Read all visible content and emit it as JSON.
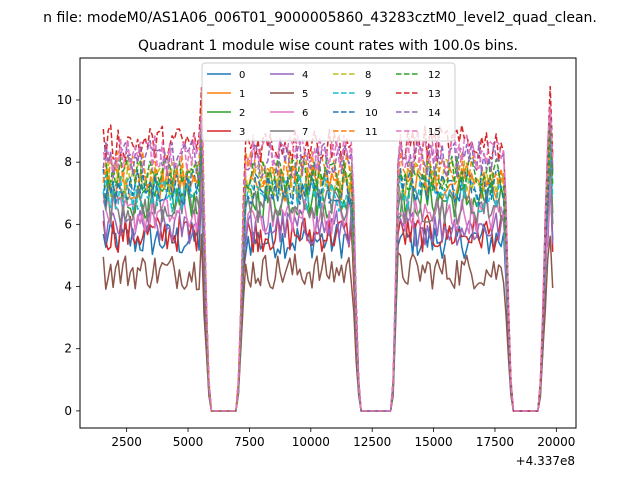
{
  "figure": {
    "suptitle": "n file: modeM0/AS1A06_006T01_9000005860_43283cztM0_level2_quad_clean.",
    "title": "Quadrant 1 module wise count rates with 100.0s bins.",
    "x_offset_label": "+4.337e8"
  },
  "chart_data": {
    "type": "line",
    "title": "Quadrant 1 module wise count rates with 100.0s bins.",
    "xlabel": "",
    "ylabel": "",
    "x_offset": 433700000,
    "xlim": [
      600,
      20800
    ],
    "ylim": [
      -0.55,
      11.35
    ],
    "xticks": [
      2500,
      5000,
      7500,
      10000,
      12500,
      15000,
      17500,
      20000
    ],
    "xtick_labels": [
      "2500",
      "5000",
      "7500",
      "10000",
      "12500",
      "15000",
      "17500",
      "20000"
    ],
    "yticks": [
      0,
      2,
      4,
      6,
      8,
      10
    ],
    "ytick_labels": [
      "0",
      "2",
      "4",
      "6",
      "8",
      "10"
    ],
    "grid": false,
    "legend_position": "top-center",
    "legend_columns": 4,
    "segments": [
      [
        1550,
        5700
      ],
      [
        7100,
        11850
      ],
      [
        13400,
        17950
      ],
      [
        19400,
        19850
      ]
    ],
    "gaps": [
      [
        5900,
        7000
      ],
      [
        12000,
        13300
      ],
      [
        18200,
        19300
      ]
    ],
    "x_start": 1550,
    "x_step": 100,
    "x_end": 19850,
    "series": [
      {
        "name": "0",
        "color": "#1f77b4",
        "dash": false,
        "level": 5.5
      },
      {
        "name": "1",
        "color": "#ff7f0e",
        "dash": false,
        "level": 7.3
      },
      {
        "name": "2",
        "color": "#2ca02c",
        "dash": false,
        "level": 6.8
      },
      {
        "name": "3",
        "color": "#d62728",
        "dash": false,
        "level": 5.7
      },
      {
        "name": "4",
        "color": "#9467bd",
        "dash": false,
        "level": 5.9
      },
      {
        "name": "5",
        "color": "#8c564b",
        "dash": false,
        "level": 4.5
      },
      {
        "name": "6",
        "color": "#e377c2",
        "dash": false,
        "level": 6.3
      },
      {
        "name": "7",
        "color": "#7f7f7f",
        "dash": false,
        "level": 6.6
      },
      {
        "name": "8",
        "color": "#bcbd22",
        "dash": true,
        "level": 7.5
      },
      {
        "name": "9",
        "color": "#17becf",
        "dash": true,
        "level": 7.0
      },
      {
        "name": "10",
        "color": "#1f77b4",
        "dash": true,
        "level": 7.2
      },
      {
        "name": "11",
        "color": "#ff7f0e",
        "dash": true,
        "level": 7.8
      },
      {
        "name": "12",
        "color": "#2ca02c",
        "dash": true,
        "level": 7.6
      },
      {
        "name": "13",
        "color": "#d62728",
        "dash": true,
        "level": 8.6
      },
      {
        "name": "14",
        "color": "#9467bd",
        "dash": true,
        "level": 8.1
      },
      {
        "name": "15",
        "color": "#e377c2",
        "dash": true,
        "level": 8.3
      }
    ]
  }
}
